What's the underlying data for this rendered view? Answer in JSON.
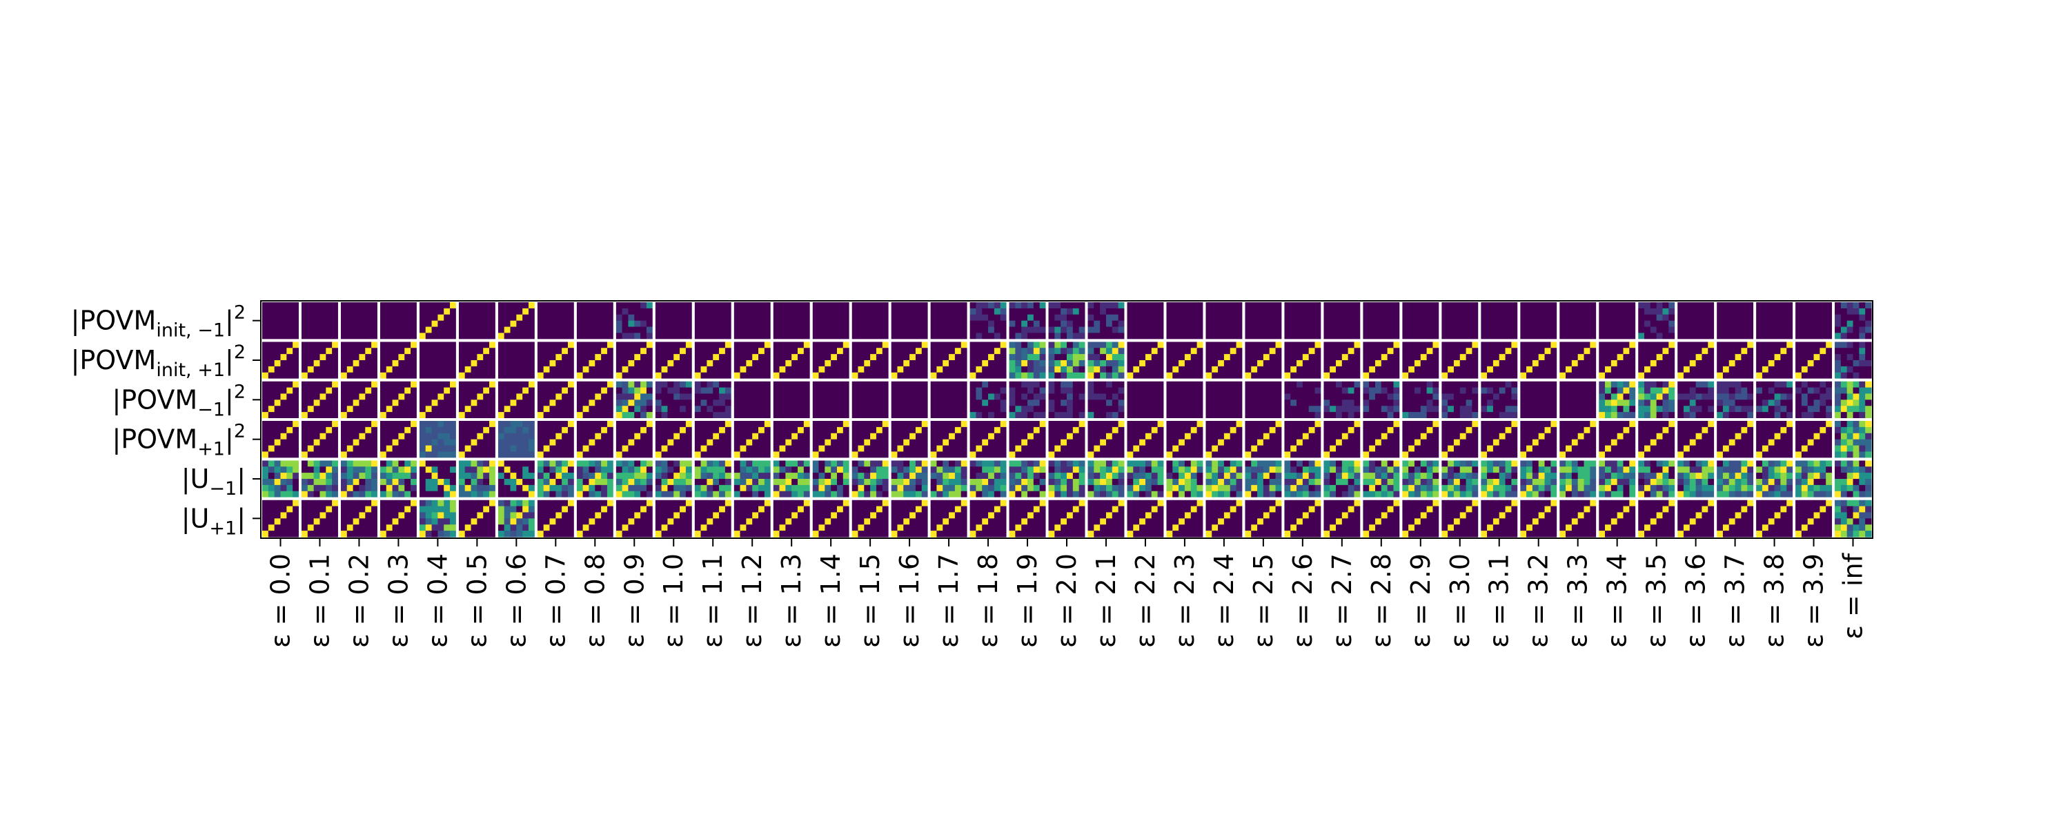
{
  "chart_data": {
    "type": "heatmap",
    "title": "",
    "xlabel": "",
    "ylabel": "",
    "rows": [
      {
        "base": "|POVM",
        "sub": "init, −1",
        "tail": "|",
        "sup": "2"
      },
      {
        "base": "|POVM",
        "sub": "init, +1",
        "tail": "|",
        "sup": "2"
      },
      {
        "base": "|POVM",
        "sub": "−1",
        "tail": "|",
        "sup": "2"
      },
      {
        "base": "|POVM",
        "sub": "+1",
        "tail": "|",
        "sup": "2"
      },
      {
        "base": "|U",
        "sub": "−1",
        "tail": "|",
        "sup": ""
      },
      {
        "base": "|U",
        "sub": "+1",
        "tail": "|",
        "sup": ""
      }
    ],
    "columns": [
      "ε = 0.0",
      "ε = 0.1",
      "ε = 0.2",
      "ε = 0.3",
      "ε = 0.4",
      "ε = 0.5",
      "ε = 0.6",
      "ε = 0.7",
      "ε = 0.8",
      "ε = 0.9",
      "ε = 1.0",
      "ε = 1.1",
      "ε = 1.2",
      "ε = 1.3",
      "ε = 1.4",
      "ε = 1.5",
      "ε = 1.6",
      "ε = 1.7",
      "ε = 1.8",
      "ε = 1.9",
      "ε = 2.0",
      "ε = 2.1",
      "ε = 2.2",
      "ε = 2.3",
      "ε = 2.4",
      "ε = 2.5",
      "ε = 2.6",
      "ε = 2.7",
      "ε = 2.8",
      "ε = 2.9",
      "ε = 3.0",
      "ε = 3.1",
      "ε = 3.2",
      "ε = 3.3",
      "ε = 3.4",
      "ε = 3.5",
      "ε = 3.6",
      "ε = 3.7",
      "ε = 3.8",
      "ε = 3.9",
      "ε = inf"
    ],
    "cell_matrix_size": 6,
    "colormap": "viridis",
    "cell_patterns": [
      [
        "empty",
        "empty",
        "empty",
        "empty",
        "antidiag",
        "empty",
        "antidiag",
        "empty",
        "empty",
        "faint",
        "empty",
        "empty",
        "empty",
        "empty",
        "empty",
        "empty",
        "empty",
        "empty",
        "faint",
        "faint",
        "faint",
        "faint",
        "empty",
        "empty",
        "empty",
        "empty",
        "empty",
        "empty",
        "empty",
        "empty",
        "empty",
        "empty",
        "empty",
        "empty",
        "empty",
        "faint",
        "empty",
        "empty",
        "empty",
        "empty",
        "faint"
      ],
      [
        "antidiag",
        "antidiag",
        "antidiag",
        "antidiag",
        "empty",
        "antidiag",
        "empty",
        "antidiag",
        "antidiag",
        "antidiag",
        "antidiag",
        "antidiag",
        "antidiag",
        "antidiag",
        "antidiag",
        "antidiag",
        "antidiag",
        "antidiag",
        "antidiag",
        "mixed",
        "mixed",
        "mixed",
        "antidiag",
        "antidiag",
        "antidiag",
        "antidiag",
        "antidiag",
        "antidiag",
        "antidiag",
        "antidiag",
        "antidiag",
        "antidiag",
        "antidiag",
        "antidiag",
        "antidiag",
        "antidiag",
        "antidiag",
        "antidiag",
        "antidiag",
        "antidiag",
        "faint"
      ],
      [
        "antidiag",
        "antidiag",
        "antidiag",
        "antidiag",
        "antidiag",
        "antidiag",
        "antidiag",
        "antidiag",
        "antidiag",
        "mixed",
        "faint",
        "faint",
        "empty",
        "empty",
        "empty",
        "empty",
        "empty",
        "empty",
        "faint",
        "faint",
        "faint",
        "faint",
        "empty",
        "empty",
        "empty",
        "empty",
        "faint",
        "faint",
        "faint",
        "faint",
        "faint",
        "faint",
        "empty",
        "empty",
        "mixed",
        "mixed",
        "faint",
        "faint",
        "faint",
        "faint",
        "mixed"
      ],
      [
        "antidiag",
        "antidiag",
        "antidiag",
        "antidiag",
        "blue",
        "antidiag",
        "blue",
        "antidiag",
        "antidiag",
        "antidiag",
        "antidiag",
        "antidiag",
        "antidiag",
        "antidiag",
        "antidiag",
        "antidiag",
        "antidiag",
        "antidiag",
        "antidiag",
        "antidiag",
        "antidiag",
        "antidiag",
        "antidiag",
        "antidiag",
        "antidiag",
        "antidiag",
        "antidiag",
        "antidiag",
        "antidiag",
        "antidiag",
        "antidiag",
        "antidiag",
        "antidiag",
        "antidiag",
        "antidiag",
        "antidiag",
        "antidiag",
        "antidiag",
        "antidiag",
        "antidiag",
        "mixed"
      ],
      [
        "mixed",
        "mixed",
        "mixed",
        "mixed",
        "diag",
        "mixed",
        "diag",
        "mixed",
        "mixed",
        "mixed",
        "mixed",
        "mixed",
        "mixed",
        "mixed",
        "mixed",
        "mixed",
        "mixed",
        "mixed",
        "mixed",
        "mixed",
        "mixed",
        "mixed",
        "mixed",
        "mixed",
        "mixed",
        "mixed",
        "mixed",
        "mixed",
        "mixed",
        "mixed",
        "mixed",
        "mixed",
        "mixed",
        "mixed",
        "mixed",
        "mixed",
        "mixed",
        "mixed",
        "mixed",
        "mixed",
        "mixed"
      ],
      [
        "antidiag",
        "antidiag",
        "antidiag",
        "antidiag",
        "mixed",
        "antidiag",
        "mixed",
        "antidiag",
        "antidiag",
        "antidiag",
        "antidiag",
        "antidiag",
        "antidiag",
        "antidiag",
        "antidiag",
        "antidiag",
        "antidiag",
        "antidiag",
        "antidiag",
        "antidiag",
        "antidiag",
        "antidiag",
        "antidiag",
        "antidiag",
        "antidiag",
        "antidiag",
        "antidiag",
        "antidiag",
        "antidiag",
        "antidiag",
        "antidiag",
        "antidiag",
        "antidiag",
        "antidiag",
        "antidiag",
        "antidiag",
        "antidiag",
        "antidiag",
        "antidiag",
        "antidiag",
        "mixed"
      ]
    ],
    "colors": {
      "dark": "#440154",
      "purple": "#472c7a",
      "indigo": "#3b528b",
      "blue": "#31688e",
      "teal": "#21918c",
      "green": "#35b779",
      "lime": "#90d743",
      "yellow": "#fde725",
      "separator": "#ffffff",
      "axis": "#000000"
    }
  }
}
